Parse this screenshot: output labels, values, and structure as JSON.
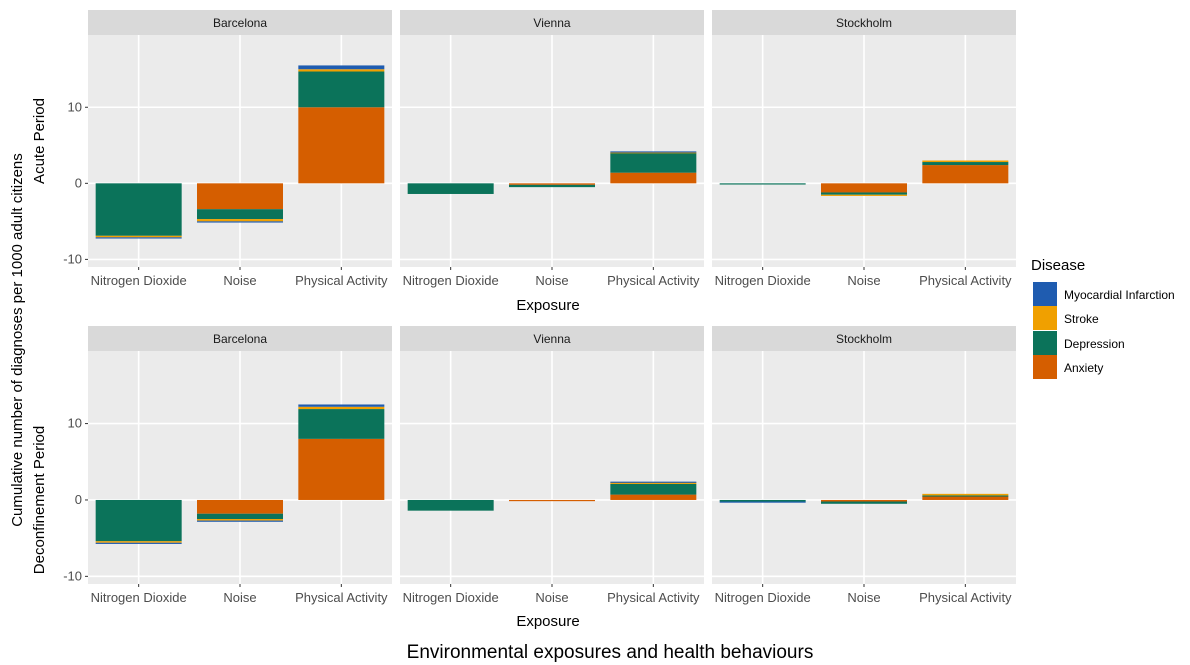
{
  "chart_data": {
    "type": "bar",
    "stacked": true,
    "y_axis_title": "Cumulative number of diagnoses per 1000 adult citizens",
    "x_axis_title": "Exposure",
    "outer_x_title": "Environmental exposures and health behaviours",
    "legend_title": "Disease",
    "legend_placement": "right",
    "legend_entries": [
      "Myocardial Infarction",
      "Stroke",
      "Depression",
      "Anxiety"
    ],
    "series_colors": {
      "Anxiety": "#D55E00",
      "Depression": "#0B735A",
      "Stroke": "#F0A000",
      "Myocardial Infarction": "#1F5CB0"
    },
    "stack_order": [
      "Anxiety",
      "Depression",
      "Stroke",
      "Myocardial Infarction"
    ],
    "categories": [
      "Nitrogen Dioxide",
      "Noise",
      "Physical Activity"
    ],
    "ylim": [
      -11,
      19.5
    ],
    "y_ticks": [
      -10,
      0,
      10
    ],
    "y_tick_labels": [
      "-10",
      "0",
      "10"
    ],
    "grid": true,
    "rows": [
      {
        "label": "Acute Period",
        "panels": [
          {
            "city": "Barcelona",
            "values": {
              "Nitrogen Dioxide": {
                "Anxiety": 0,
                "Depression": -6.9,
                "Stroke": -0.2,
                "Myocardial Infarction": -0.1
              },
              "Noise": {
                "Anxiety": -3.4,
                "Depression": -1.3,
                "Stroke": -0.3,
                "Myocardial Infarction": -0.1
              },
              "Physical Activity": {
                "Anxiety": 10.0,
                "Depression": 4.7,
                "Stroke": 0.3,
                "Myocardial Infarction": 0.5
              }
            }
          },
          {
            "city": "Vienna",
            "values": {
              "Nitrogen Dioxide": {
                "Anxiety": 0,
                "Depression": -1.4,
                "Stroke": 0,
                "Myocardial Infarction": 0
              },
              "Noise": {
                "Anxiety": -0.2,
                "Depression": -0.3,
                "Stroke": 0,
                "Myocardial Infarction": 0
              },
              "Physical Activity": {
                "Anxiety": 1.4,
                "Depression": 2.6,
                "Stroke": 0.1,
                "Myocardial Infarction": 0.1
              }
            }
          },
          {
            "city": "Stockholm",
            "values": {
              "Nitrogen Dioxide": {
                "Anxiety": 0,
                "Depression": -0.1,
                "Stroke": 0,
                "Myocardial Infarction": 0
              },
              "Noise": {
                "Anxiety": -1.2,
                "Depression": -0.3,
                "Stroke": -0.05,
                "Myocardial Infarction": 0
              },
              "Physical Activity": {
                "Anxiety": 2.4,
                "Depression": 0.4,
                "Stroke": 0.2,
                "Myocardial Infarction": 0
              }
            }
          }
        ]
      },
      {
        "label": "Deconfinement Period",
        "panels": [
          {
            "city": "Barcelona",
            "values": {
              "Nitrogen Dioxide": {
                "Anxiety": 0,
                "Depression": -5.4,
                "Stroke": -0.2,
                "Myocardial Infarction": -0.1
              },
              "Noise": {
                "Anxiety": -1.8,
                "Depression": -0.7,
                "Stroke": -0.2,
                "Myocardial Infarction": -0.1
              },
              "Physical Activity": {
                "Anxiety": 8.0,
                "Depression": 3.9,
                "Stroke": 0.3,
                "Myocardial Infarction": 0.3
              }
            }
          },
          {
            "city": "Vienna",
            "values": {
              "Nitrogen Dioxide": {
                "Anxiety": 0,
                "Depression": -1.4,
                "Stroke": 0,
                "Myocardial Infarction": 0
              },
              "Noise": {
                "Anxiety": -0.1,
                "Depression": 0,
                "Stroke": 0,
                "Myocardial Infarction": 0
              },
              "Physical Activity": {
                "Anxiety": 0.7,
                "Depression": 1.4,
                "Stroke": 0.2,
                "Myocardial Infarction": 0.1
              }
            }
          },
          {
            "city": "Stockholm",
            "values": {
              "Nitrogen Dioxide": {
                "Anxiety": 0,
                "Depression": -0.2,
                "Stroke": 0,
                "Myocardial Infarction": -0.05
              },
              "Noise": {
                "Anxiety": -0.2,
                "Depression": -0.3,
                "Stroke": 0,
                "Myocardial Infarction": 0
              },
              "Physical Activity": {
                "Anxiety": 0.5,
                "Depression": 0.1,
                "Stroke": 0.2,
                "Myocardial Infarction": 0
              }
            }
          }
        ]
      }
    ]
  }
}
